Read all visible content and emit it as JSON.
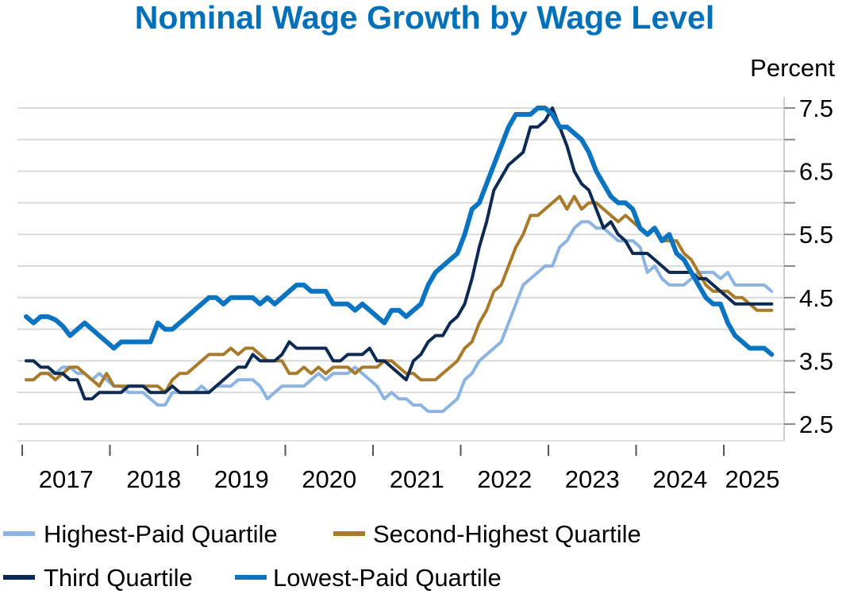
{
  "chart_data": {
    "type": "line",
    "title": "Nominal Wage Growth by Wage Level",
    "ylabel": "Percent",
    "xlabel": "",
    "ylim": [
      2.0,
      7.9
    ],
    "yticks": [
      2.5,
      3.5,
      4.5,
      5.5,
      6.5,
      7.5
    ],
    "ytick_labels": [
      "2.5",
      "3.5",
      "4.5",
      "5.5",
      "6.5",
      "7.5"
    ],
    "x_start": "2017-01",
    "x_frequency": "monthly",
    "xtick_labels": [
      "2017",
      "2018",
      "2019",
      "2020",
      "2021",
      "2022",
      "2023",
      "2024",
      "2025"
    ],
    "grid": true,
    "legend_position": "bottom",
    "series": [
      {
        "name": "Highest-Paid Quartile",
        "color": "#8cb4e2",
        "values": [
          3.2,
          3.2,
          3.3,
          3.3,
          3.3,
          3.4,
          3.4,
          3.3,
          3.3,
          3.2,
          3.3,
          3.2,
          3.1,
          3.1,
          3.0,
          3.0,
          3.0,
          2.9,
          2.8,
          2.8,
          3.0,
          3.0,
          3.0,
          3.0,
          3.1,
          3.0,
          3.1,
          3.1,
          3.1,
          3.2,
          3.2,
          3.2,
          3.1,
          2.9,
          3.0,
          3.1,
          3.1,
          3.1,
          3.1,
          3.2,
          3.3,
          3.2,
          3.3,
          3.3,
          3.3,
          3.4,
          3.3,
          3.2,
          3.1,
          2.9,
          3.0,
          2.9,
          2.9,
          2.8,
          2.8,
          2.7,
          2.7,
          2.7,
          2.8,
          2.9,
          3.2,
          3.3,
          3.5,
          3.6,
          3.7,
          3.8,
          4.1,
          4.4,
          4.7,
          4.8,
          4.9,
          5.0,
          5.0,
          5.3,
          5.4,
          5.6,
          5.7,
          5.7,
          5.6,
          5.6,
          5.5,
          5.4,
          5.4,
          5.4,
          5.3,
          4.9,
          5.0,
          4.8,
          4.7,
          4.7,
          4.7,
          4.8,
          4.9,
          4.9,
          4.9,
          4.8,
          4.9,
          4.7,
          4.7,
          4.7,
          4.7,
          4.7,
          4.6
        ]
      },
      {
        "name": "Second-Highest Quartile",
        "color": "#a87a2a",
        "values": [
          3.2,
          3.2,
          3.3,
          3.3,
          3.2,
          3.3,
          3.4,
          3.4,
          3.3,
          3.2,
          3.1,
          3.3,
          3.1,
          3.1,
          3.1,
          3.1,
          3.1,
          3.1,
          3.1,
          3.0,
          3.2,
          3.3,
          3.3,
          3.4,
          3.5,
          3.6,
          3.6,
          3.6,
          3.7,
          3.6,
          3.7,
          3.7,
          3.6,
          3.5,
          3.5,
          3.5,
          3.3,
          3.3,
          3.4,
          3.3,
          3.4,
          3.3,
          3.4,
          3.4,
          3.4,
          3.3,
          3.4,
          3.4,
          3.4,
          3.5,
          3.5,
          3.4,
          3.3,
          3.3,
          3.2,
          3.2,
          3.2,
          3.3,
          3.4,
          3.5,
          3.7,
          3.8,
          4.1,
          4.3,
          4.6,
          4.7,
          5.0,
          5.3,
          5.5,
          5.8,
          5.8,
          5.9,
          6.0,
          6.1,
          5.9,
          6.1,
          5.9,
          6.0,
          6.0,
          5.9,
          5.8,
          5.7,
          5.8,
          5.7,
          5.6,
          5.5,
          5.6,
          5.4,
          5.4,
          5.4,
          5.2,
          5.1,
          4.9,
          4.7,
          4.6,
          4.6,
          4.6,
          4.5,
          4.5,
          4.4,
          4.3,
          4.3,
          4.3
        ]
      },
      {
        "name": "Third Quartile",
        "color": "#0d2a52",
        "values": [
          3.5,
          3.5,
          3.4,
          3.4,
          3.3,
          3.3,
          3.2,
          3.2,
          2.9,
          2.9,
          3.0,
          3.0,
          3.0,
          3.0,
          3.1,
          3.1,
          3.1,
          3.0,
          3.0,
          3.0,
          3.1,
          3.0,
          3.0,
          3.0,
          3.0,
          3.0,
          3.1,
          3.2,
          3.3,
          3.4,
          3.4,
          3.6,
          3.5,
          3.5,
          3.5,
          3.6,
          3.8,
          3.7,
          3.7,
          3.7,
          3.7,
          3.7,
          3.5,
          3.5,
          3.6,
          3.6,
          3.6,
          3.7,
          3.5,
          3.5,
          3.4,
          3.3,
          3.2,
          3.5,
          3.6,
          3.8,
          3.9,
          3.9,
          4.1,
          4.2,
          4.4,
          4.8,
          5.3,
          5.7,
          6.2,
          6.4,
          6.6,
          6.7,
          6.8,
          7.2,
          7.2,
          7.3,
          7.5,
          7.2,
          6.9,
          6.5,
          6.3,
          6.2,
          5.9,
          5.6,
          5.7,
          5.5,
          5.4,
          5.2,
          5.2,
          5.2,
          5.1,
          5.0,
          4.9,
          4.9,
          4.9,
          4.9,
          4.8,
          4.8,
          4.7,
          4.6,
          4.5,
          4.4,
          4.4,
          4.4,
          4.4,
          4.4,
          4.4
        ]
      },
      {
        "name": "Lowest-Paid Quartile",
        "color": "#0a74c0",
        "values": [
          4.2,
          4.1,
          4.2,
          4.2,
          4.15,
          4.05,
          3.9,
          4.0,
          4.1,
          4.0,
          3.9,
          3.8,
          3.7,
          3.8,
          3.8,
          3.8,
          3.8,
          3.8,
          4.1,
          4.0,
          4.0,
          4.1,
          4.2,
          4.3,
          4.4,
          4.5,
          4.5,
          4.4,
          4.5,
          4.5,
          4.5,
          4.5,
          4.4,
          4.5,
          4.4,
          4.5,
          4.6,
          4.7,
          4.7,
          4.6,
          4.6,
          4.6,
          4.4,
          4.4,
          4.4,
          4.3,
          4.4,
          4.3,
          4.2,
          4.1,
          4.3,
          4.3,
          4.2,
          4.3,
          4.4,
          4.7,
          4.9,
          5.0,
          5.1,
          5.2,
          5.5,
          5.9,
          6.0,
          6.3,
          6.6,
          6.9,
          7.2,
          7.4,
          7.4,
          7.4,
          7.5,
          7.5,
          7.4,
          7.2,
          7.2,
          7.1,
          7.0,
          6.8,
          6.5,
          6.3,
          6.1,
          6.0,
          6.0,
          5.9,
          5.6,
          5.5,
          5.6,
          5.4,
          5.5,
          5.2,
          5.1,
          4.9,
          4.7,
          4.5,
          4.4,
          4.4,
          4.1,
          3.9,
          3.8,
          3.7,
          3.7,
          3.7,
          3.6
        ]
      }
    ]
  },
  "legend": {
    "row1": [
      "Highest-Paid Quartile",
      "Second-Highest Quartile"
    ],
    "row2": [
      "Third Quartile",
      "Lowest-Paid Quartile"
    ]
  }
}
